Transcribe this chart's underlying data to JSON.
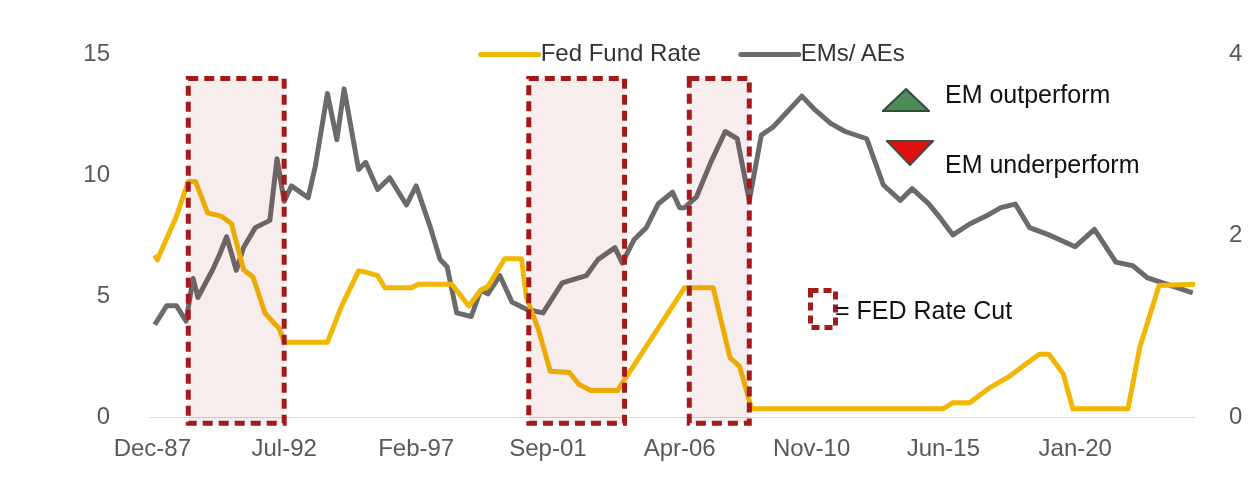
{
  "chart_data": {
    "type": "line",
    "legend": "top",
    "grid": false,
    "marker": "none",
    "line_style": "solid",
    "xlim": [
      "1987-11",
      "2024-03"
    ],
    "xticks": [
      {
        "value": "1987-12",
        "label": "Dec-87"
      },
      {
        "value": "1992-07",
        "label": "Jul-92"
      },
      {
        "value": "1997-02",
        "label": "Feb-97"
      },
      {
        "value": "2001-09",
        "label": "Sep-01"
      },
      {
        "value": "2006-04",
        "label": "Apr-06"
      },
      {
        "value": "2010-11",
        "label": "Nov-10"
      },
      {
        "value": "2015-06",
        "label": "Jun-15"
      },
      {
        "value": "2020-01",
        "label": "Jan-20"
      }
    ],
    "ylim": [
      0,
      15
    ],
    "yticks": [
      0,
      5,
      10,
      15
    ],
    "y2lim": [
      0,
      4
    ],
    "y2ticks": [
      0,
      2,
      4
    ],
    "series": [
      {
        "name": "Fed Fund Rate",
        "color": "#f2b705",
        "x": [
          "1988-01",
          "1988-02",
          "1988-10",
          "1989-03",
          "1989-06",
          "1989-11",
          "1990-05",
          "1990-09",
          "1991-02",
          "1991-06",
          "1991-11",
          "1992-05",
          "1992-07",
          "1994-01",
          "1994-07",
          "1995-02",
          "1995-05",
          "1995-10",
          "1996-01",
          "1996-12",
          "1997-03",
          "1998-05",
          "1998-12",
          "1999-05",
          "1999-08",
          "2000-03",
          "2000-10",
          "2000-12",
          "2001-05",
          "2001-10",
          "2002-06",
          "2002-10",
          "2003-03",
          "2004-02",
          "2006-06",
          "2007-06",
          "2008-01",
          "2008-05",
          "2008-10",
          "2015-06",
          "2015-10",
          "2016-05",
          "2017-01",
          "2017-09",
          "2018-10",
          "2019-02",
          "2019-08",
          "2019-12",
          "2021-11",
          "2022-04",
          "2022-12",
          "2024-03"
        ],
        "values": [
          6.7,
          6.5,
          8.3,
          9.75,
          9.75,
          8.45,
          8.3,
          8.0,
          6.1,
          5.8,
          4.3,
          3.65,
          3.1,
          3.1,
          4.6,
          6.05,
          6.0,
          5.85,
          5.35,
          5.35,
          5.5,
          5.5,
          4.6,
          5.25,
          5.4,
          6.55,
          6.55,
          4.95,
          3.65,
          1.9,
          1.85,
          1.35,
          1.1,
          1.1,
          5.35,
          5.35,
          2.45,
          2.1,
          0.35,
          0.35,
          0.6,
          0.6,
          1.2,
          1.65,
          2.6,
          2.6,
          1.8,
          0.35,
          0.35,
          2.9,
          5.45,
          5.5
        ]
      },
      {
        "name": "EMs/ AEs",
        "color": "#6b6b6b",
        "axis": "y2",
        "x": [
          "1988-01",
          "1988-06",
          "1988-10",
          "1989-02",
          "1989-05",
          "1989-07",
          "1990-01",
          "1990-04",
          "1990-07",
          "1990-11",
          "1991-02",
          "1991-07",
          "1992-01",
          "1992-04",
          "1992-07",
          "1992-10",
          "1993-05",
          "1993-08",
          "1994-01",
          "1994-05",
          "1994-08",
          "1995-02",
          "1995-05",
          "1995-10",
          "1996-03",
          "1996-10",
          "1997-02",
          "1997-08",
          "1997-12",
          "1998-03",
          "1998-07",
          "1999-01",
          "1999-05",
          "1999-08",
          "2000-01",
          "2000-06",
          "2000-12",
          "2001-07",
          "2002-03",
          "2003-01",
          "2003-06",
          "2004-01",
          "2004-04",
          "2004-09",
          "2005-02",
          "2005-07",
          "2006-01",
          "2006-04",
          "2006-06",
          "2006-11",
          "2007-05",
          "2007-11",
          "2008-04",
          "2008-09",
          "2009-02",
          "2009-07",
          "2010-07",
          "2010-12",
          "2011-07",
          "2012-01",
          "2012-10",
          "2013-05",
          "2013-12",
          "2014-05",
          "2014-12",
          "2015-04",
          "2015-10",
          "2016-05",
          "2016-12",
          "2017-06",
          "2017-12",
          "2018-06",
          "2019-02",
          "2020-01",
          "2020-09",
          "2021-06",
          "2022-01",
          "2022-07",
          "2023-05",
          "2024-02"
        ],
        "values": [
          1.02,
          1.23,
          1.23,
          1.06,
          1.53,
          1.32,
          1.62,
          1.79,
          1.99,
          1.62,
          1.87,
          2.09,
          2.17,
          2.85,
          2.38,
          2.55,
          2.42,
          2.77,
          3.57,
          3.06,
          3.62,
          2.73,
          2.81,
          2.51,
          2.64,
          2.34,
          2.55,
          2.09,
          1.74,
          1.66,
          1.15,
          1.11,
          1.4,
          1.36,
          1.56,
          1.27,
          1.19,
          1.15,
          1.48,
          1.56,
          1.74,
          1.87,
          1.7,
          1.96,
          2.09,
          2.35,
          2.48,
          2.31,
          2.31,
          2.43,
          2.81,
          3.15,
          3.07,
          2.39,
          3.11,
          3.2,
          3.54,
          3.4,
          3.24,
          3.15,
          3.07,
          2.56,
          2.39,
          2.52,
          2.35,
          2.22,
          2.01,
          2.13,
          2.22,
          2.31,
          2.35,
          2.09,
          2.01,
          1.88,
          2.07,
          1.71,
          1.67,
          1.54,
          1.45,
          1.37
        ]
      }
    ],
    "bands": [
      {
        "axis": "x",
        "from": "1989-03",
        "to": "1992-07",
        "color": "#a31a1a"
      },
      {
        "axis": "x",
        "from": "2001-01",
        "to": "2004-05",
        "color": "#a31a1a"
      },
      {
        "axis": "x",
        "from": "2006-08",
        "to": "2008-09",
        "color": "#a31a1a"
      }
    ],
    "annotations": [
      "EM outperform",
      "EM underperform",
      "= FED Rate Cut"
    ]
  }
}
